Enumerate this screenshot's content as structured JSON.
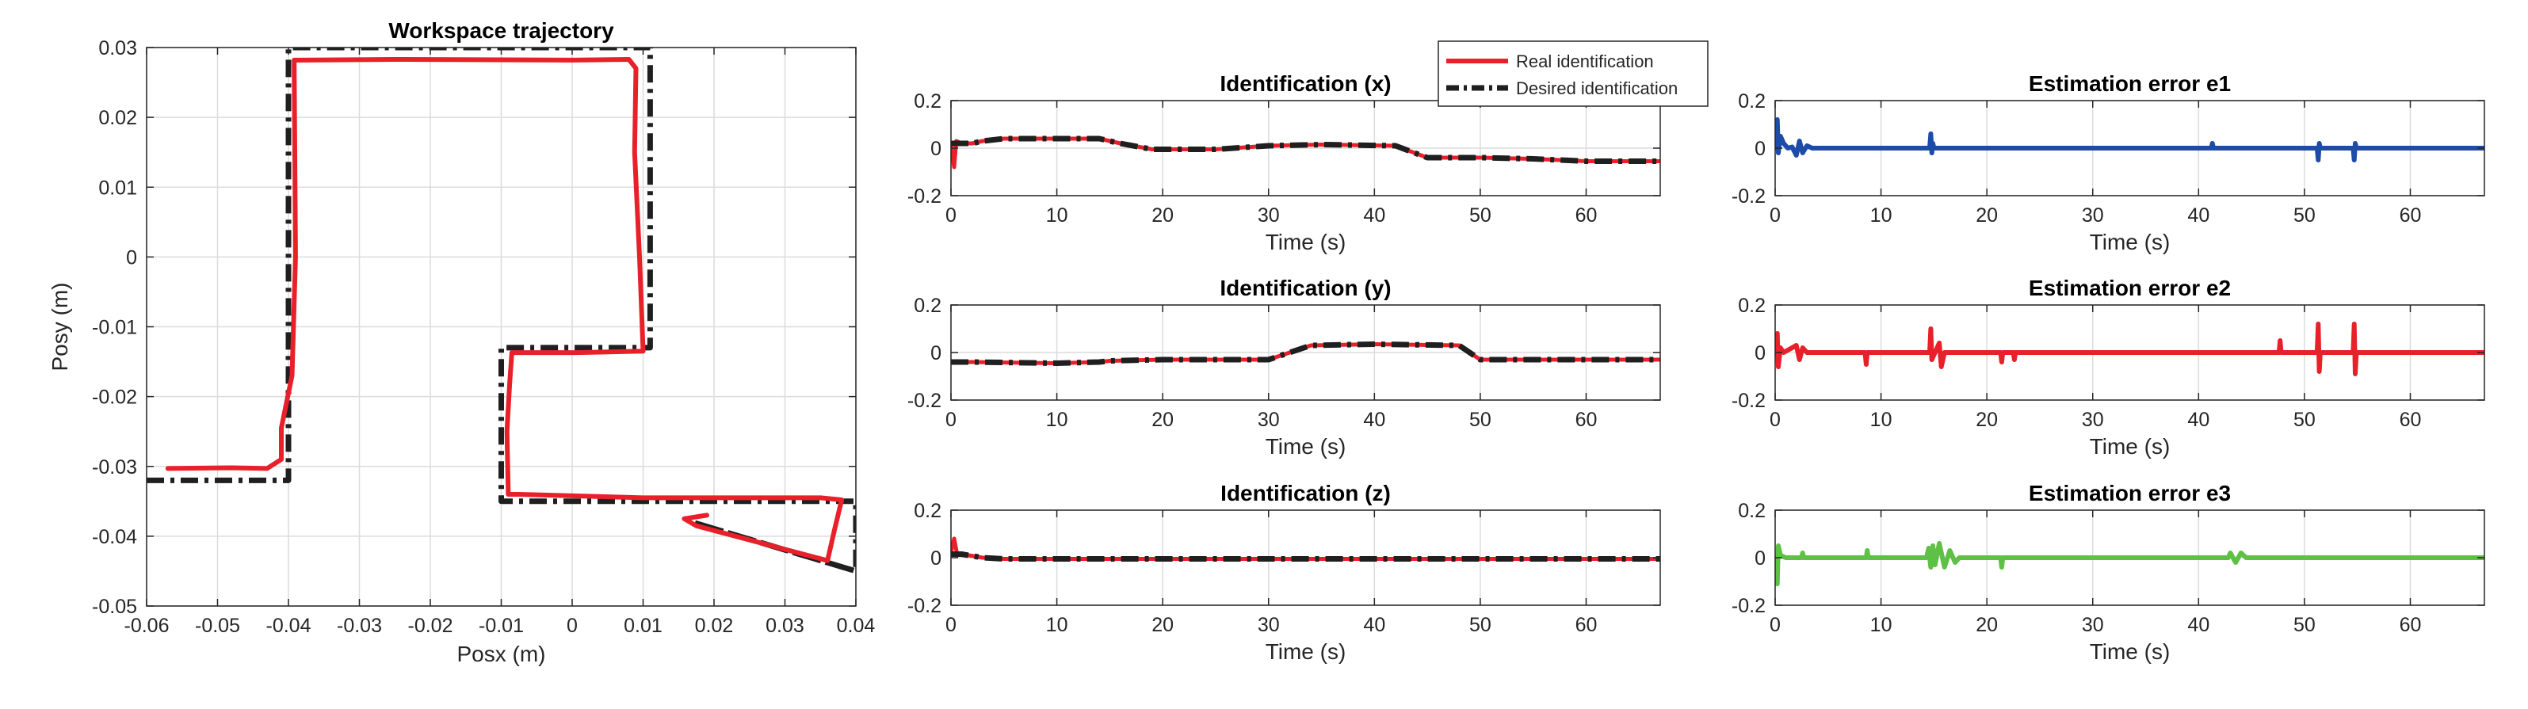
{
  "colors": {
    "real": "#e8202a",
    "desired": "#1f1f1f",
    "e1": "#1d4ba8",
    "e2": "#e8202a",
    "e3": "#5ec044",
    "axis": "#262626",
    "grid": "#dcdcdc"
  },
  "legend": {
    "entries": [
      "Real identification",
      "Desired identification"
    ],
    "placement": "top, between first and second column"
  },
  "chart_data": [
    {
      "id": "workspace",
      "type": "line",
      "title": "Workspace trajectory",
      "xlabel": "Posx (m)",
      "ylabel": "Posy (m)",
      "xlim": [
        -0.06,
        0.04
      ],
      "ylim": [
        -0.05,
        0.03
      ],
      "xticks": [
        -0.06,
        -0.05,
        -0.04,
        -0.03,
        -0.02,
        -0.01,
        0,
        0.01,
        0.02,
        0.03,
        0.04
      ],
      "xtick_labels": [
        "-0.06",
        "-0.05",
        "-0.04",
        "-0.03",
        "-0.02",
        "-0.01",
        "0",
        "0.01",
        "0.02",
        "0.03",
        "0.04"
      ],
      "yticks": [
        -0.05,
        -0.04,
        -0.03,
        -0.02,
        -0.01,
        0,
        0.01,
        0.02,
        0.03
      ],
      "ytick_labels": [
        "-0.05",
        "-0.04",
        "-0.03",
        "-0.02",
        "-0.01",
        "0",
        "0.01",
        "0.02",
        "0.03"
      ],
      "grid": true,
      "series": [
        {
          "name": "Desired identification",
          "style": "dashdot",
          "x": [
            -0.06,
            -0.04,
            -0.04,
            0.011,
            0.011,
            -0.01,
            -0.01,
            0.04,
            0.04,
            0.017,
            0.04
          ],
          "y": [
            -0.032,
            -0.032,
            0.03,
            0.03,
            -0.013,
            -0.013,
            -0.035,
            -0.035,
            -0.045,
            -0.038,
            -0.045
          ]
        },
        {
          "name": "Real identification",
          "style": "solid",
          "x": [
            -0.057,
            -0.048,
            -0.043,
            -0.041,
            -0.041,
            -0.0395,
            -0.039,
            -0.0392,
            -0.025,
            0,
            0.008,
            0.009,
            0.0088,
            0.0095,
            0.0098,
            0.01,
            0.0005,
            -0.0085,
            -0.0088,
            -0.0092,
            -0.009,
            -0.0075,
            0.01,
            0.035,
            0.038,
            0.037,
            0.036,
            0.0175,
            0.0158,
            0.019
          ],
          "y": [
            -0.0303,
            -0.0302,
            -0.0303,
            -0.029,
            -0.0245,
            -0.017,
            0,
            0.0282,
            0.0283,
            0.0282,
            0.0283,
            0.027,
            0.015,
            0,
            -0.008,
            -0.0135,
            -0.0137,
            -0.0137,
            -0.018,
            -0.025,
            -0.034,
            -0.034,
            -0.0345,
            -0.0345,
            -0.0348,
            -0.039,
            -0.0435,
            -0.0385,
            -0.0375,
            -0.037
          ]
        }
      ]
    },
    {
      "id": "ident-x",
      "type": "line",
      "title": "Identification (x)",
      "xlabel": "Time (s)",
      "ylabel": "",
      "xlim": [
        0,
        67
      ],
      "ylim": [
        -0.2,
        0.2
      ],
      "xticks": [
        0,
        10,
        20,
        30,
        40,
        50,
        60
      ],
      "xtick_labels": [
        "0",
        "10",
        "20",
        "30",
        "40",
        "50",
        "60"
      ],
      "yticks": [
        -0.2,
        0,
        0.2
      ],
      "ytick_labels": [
        "-0.2",
        "0",
        "0.2"
      ],
      "grid": true,
      "series": [
        {
          "name": "Real identification",
          "x": [
            0,
            0.3,
            0.5,
            1,
            2,
            3,
            5,
            14,
            16,
            19,
            25,
            30,
            35,
            42,
            45,
            50,
            55,
            60,
            67
          ],
          "y": [
            0.02,
            -0.08,
            0.03,
            0.02,
            0.02,
            0.03,
            0.04,
            0.04,
            0.02,
            -0.005,
            -0.005,
            0.01,
            0.015,
            0.01,
            -0.04,
            -0.04,
            -0.045,
            -0.055,
            -0.055
          ]
        },
        {
          "name": "Desired identification",
          "x": [
            0,
            1,
            2,
            3,
            5,
            14,
            16,
            19,
            25,
            30,
            35,
            42,
            45,
            50,
            55,
            60,
            67
          ],
          "y": [
            0.02,
            0.02,
            0.02,
            0.03,
            0.04,
            0.04,
            0.02,
            -0.005,
            -0.005,
            0.01,
            0.015,
            0.01,
            -0.04,
            -0.04,
            -0.045,
            -0.055,
            -0.055
          ]
        }
      ]
    },
    {
      "id": "ident-y",
      "type": "line",
      "title": "Identification (y)",
      "xlabel": "Time (s)",
      "ylabel": "",
      "xlim": [
        0,
        67
      ],
      "ylim": [
        -0.2,
        0.2
      ],
      "xticks": [
        0,
        10,
        20,
        30,
        40,
        50,
        60
      ],
      "xtick_labels": [
        "0",
        "10",
        "20",
        "30",
        "40",
        "50",
        "60"
      ],
      "yticks": [
        -0.2,
        0,
        0.2
      ],
      "ytick_labels": [
        "-0.2",
        "0",
        "0.2"
      ],
      "grid": true,
      "series": [
        {
          "name": "Real identification",
          "x": [
            0,
            2,
            10,
            14,
            15,
            20,
            30,
            34,
            40,
            48,
            50,
            53,
            67
          ],
          "y": [
            -0.04,
            -0.04,
            -0.045,
            -0.04,
            -0.035,
            -0.03,
            -0.03,
            0.03,
            0.035,
            0.03,
            -0.03,
            -0.03,
            -0.03
          ]
        },
        {
          "name": "Desired identification",
          "x": [
            0,
            2,
            10,
            14,
            15,
            20,
            30,
            34,
            40,
            48,
            50,
            53,
            67
          ],
          "y": [
            -0.04,
            -0.04,
            -0.045,
            -0.04,
            -0.035,
            -0.03,
            -0.03,
            0.03,
            0.035,
            0.03,
            -0.03,
            -0.03,
            -0.03
          ]
        }
      ]
    },
    {
      "id": "ident-z",
      "type": "line",
      "title": "Identification (z)",
      "xlabel": "Time (s)",
      "ylabel": "",
      "xlim": [
        0,
        67
      ],
      "ylim": [
        -0.2,
        0.2
      ],
      "xticks": [
        0,
        10,
        20,
        30,
        40,
        50,
        60
      ],
      "xtick_labels": [
        "0",
        "10",
        "20",
        "30",
        "40",
        "50",
        "60"
      ],
      "yticks": [
        -0.2,
        0,
        0.2
      ],
      "ytick_labels": [
        "-0.2",
        "0",
        "0.2"
      ],
      "grid": true,
      "series": [
        {
          "name": "Real identification",
          "x": [
            0,
            0.3,
            0.6,
            1,
            3,
            5,
            10,
            20,
            30,
            40,
            50,
            60,
            67
          ],
          "y": [
            0.02,
            0.08,
            0.01,
            0.015,
            0.0,
            -0.005,
            -0.005,
            -0.005,
            -0.005,
            -0.005,
            -0.005,
            -0.005,
            -0.005
          ]
        },
        {
          "name": "Desired identification",
          "x": [
            0,
            1,
            3,
            5,
            10,
            20,
            30,
            40,
            50,
            60,
            67
          ],
          "y": [
            0.015,
            0.015,
            0.0,
            -0.005,
            -0.005,
            -0.005,
            -0.005,
            -0.005,
            -0.005,
            -0.005,
            -0.005
          ]
        }
      ]
    },
    {
      "id": "err-e1",
      "type": "line",
      "title": "Estimation error e1",
      "xlabel": "Time (s)",
      "ylabel": "",
      "xlim": [
        0,
        67
      ],
      "ylim": [
        -0.2,
        0.2
      ],
      "xticks": [
        0,
        10,
        20,
        30,
        40,
        50,
        60
      ],
      "xtick_labels": [
        "0",
        "10",
        "20",
        "30",
        "40",
        "50",
        "60"
      ],
      "yticks": [
        -0.2,
        0,
        0.2
      ],
      "ytick_labels": [
        "-0.2",
        "0",
        "0.2"
      ],
      "grid": true,
      "series": [
        {
          "name": "e1",
          "x": [
            0,
            0.2,
            0.3,
            0.5,
            0.8,
            1.2,
            1.6,
            2,
            2.3,
            2.6,
            3,
            3.5,
            14.6,
            14.7,
            14.8,
            14.9,
            15,
            41.2,
            41.3,
            41.4,
            51.2,
            51.3,
            51.4,
            51.5,
            54.6,
            54.7,
            54.8,
            54.9,
            67
          ],
          "y": [
            0,
            0.12,
            -0.02,
            0.05,
            0.02,
            0,
            0.005,
            -0.03,
            0.03,
            -0.02,
            0.01,
            0,
            0,
            0.06,
            -0.02,
            0.02,
            0,
            0,
            0.02,
            0,
            0,
            -0.05,
            0.02,
            0,
            0,
            -0.05,
            0.02,
            0,
            0
          ]
        }
      ]
    },
    {
      "id": "err-e2",
      "type": "line",
      "title": "Estimation error e2",
      "xlabel": "Time (s)",
      "ylabel": "",
      "xlim": [
        0,
        67
      ],
      "ylim": [
        -0.2,
        0.2
      ],
      "xticks": [
        0,
        10,
        20,
        30,
        40,
        50,
        60
      ],
      "xtick_labels": [
        "0",
        "10",
        "20",
        "30",
        "40",
        "50",
        "60"
      ],
      "yticks": [
        -0.2,
        0,
        0.2
      ],
      "ytick_labels": [
        "-0.2",
        "0",
        "0.2"
      ],
      "grid": true,
      "series": [
        {
          "name": "e2",
          "x": [
            0,
            0.2,
            0.3,
            0.5,
            0.8,
            2,
            2.3,
            2.6,
            3,
            8.5,
            8.6,
            8.7,
            14.6,
            14.7,
            14.8,
            15.5,
            15.7,
            16,
            21.3,
            21.4,
            21.5,
            22.5,
            22.6,
            22.7,
            47.6,
            47.7,
            47.8,
            51.2,
            51.3,
            51.4,
            51.5,
            54.6,
            54.7,
            54.8,
            54.9,
            67
          ],
          "y": [
            0,
            0.08,
            -0.06,
            0.02,
            0,
            0.03,
            -0.03,
            0.02,
            0,
            0,
            -0.05,
            0,
            0,
            0.1,
            -0.03,
            0.04,
            -0.06,
            0,
            0,
            -0.04,
            0,
            0,
            -0.03,
            0,
            0,
            0.05,
            0,
            0,
            0.12,
            -0.08,
            0,
            0,
            0.12,
            -0.09,
            0,
            0
          ]
        }
      ]
    },
    {
      "id": "err-e3",
      "type": "line",
      "title": "Estimation error e3",
      "xlabel": "Time (s)",
      "ylabel": "",
      "xlim": [
        0,
        67
      ],
      "ylim": [
        -0.2,
        0.2
      ],
      "xticks": [
        0,
        10,
        20,
        30,
        40,
        50,
        60
      ],
      "xtick_labels": [
        "0",
        "10",
        "20",
        "30",
        "40",
        "50",
        "60"
      ],
      "yticks": [
        -0.2,
        0,
        0.2
      ],
      "ytick_labels": [
        "-0.2",
        "0",
        "0.2"
      ],
      "grid": true,
      "series": [
        {
          "name": "e3",
          "x": [
            0,
            0.2,
            0.3,
            0.5,
            1,
            2.5,
            2.6,
            2.7,
            8.6,
            8.7,
            8.8,
            14.3,
            14.5,
            14.7,
            14.9,
            15.1,
            15.5,
            16,
            16.5,
            17,
            17.4,
            21.3,
            21.4,
            21.5,
            42.8,
            43,
            43.5,
            44,
            44.5,
            67
          ],
          "y": [
            0,
            -0.11,
            0.05,
            0.01,
            0,
            0,
            0.02,
            0,
            0,
            0.03,
            0,
            0,
            0.04,
            -0.04,
            0.05,
            -0.03,
            0.06,
            -0.04,
            0.03,
            -0.02,
            0,
            0,
            -0.04,
            0,
            0,
            0.02,
            -0.02,
            0.02,
            0,
            0
          ]
        }
      ]
    }
  ]
}
